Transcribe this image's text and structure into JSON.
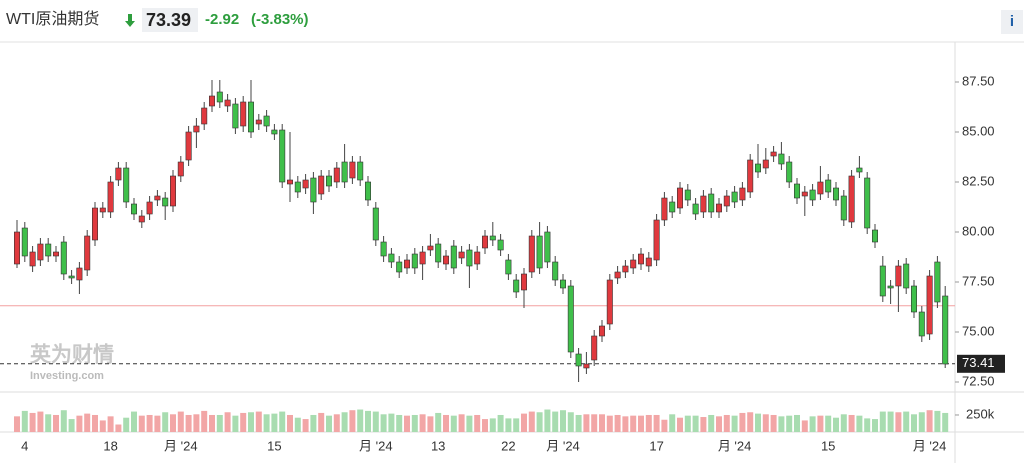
{
  "header": {
    "title": "WTI原油期货",
    "price": "73.39",
    "change": "-2.92",
    "change_pct": "(-3.83%)",
    "info": "i"
  },
  "watermark": {
    "brand": "英为财情",
    "site": "Investing.com"
  },
  "chart_data": {
    "type": "candlestick",
    "categories": [
      null,
      "4",
      null,
      null,
      null,
      null,
      null,
      null,
      null,
      null,
      null,
      null,
      "18",
      null,
      null,
      null,
      null,
      null,
      null,
      null,
      null,
      "月 '24",
      null,
      null,
      null,
      null,
      null,
      null,
      null,
      null,
      null,
      null,
      null,
      "15",
      null,
      null,
      null,
      null,
      null,
      null,
      null,
      null,
      null,
      null,
      null,
      null,
      "月 '24",
      null,
      null,
      null,
      null,
      null,
      null,
      null,
      "13",
      null,
      null,
      null,
      null,
      null,
      null,
      null,
      null,
      "22",
      null,
      null,
      null,
      null,
      null,
      null,
      "月 '24",
      null,
      null,
      null,
      null,
      null,
      null,
      null,
      null,
      null,
      null,
      null,
      "17",
      null,
      null,
      null,
      null,
      null,
      null,
      null,
      null,
      null,
      "月 '24",
      null,
      null,
      null,
      null,
      null,
      null,
      null,
      null,
      null,
      null,
      null,
      "15",
      null,
      null,
      null,
      null,
      null,
      null,
      null,
      null,
      null,
      null,
      null,
      null,
      "月 '24",
      null,
      null
    ],
    "open": [
      78.4,
      80.2,
      78.3,
      78.6,
      79.4,
      78.8,
      79.5,
      77.8,
      77.6,
      78.1,
      79.6,
      81.0,
      81.0,
      82.6,
      83.2,
      81.4,
      80.5,
      80.9,
      81.6,
      81.7,
      81.3,
      82.8,
      83.6,
      85.0,
      85.4,
      86.3,
      87.0,
      86.3,
      86.4,
      85.3,
      86.5,
      85.4,
      85.8,
      85.1,
      85.1,
      82.4,
      82.5,
      82.2,
      82.7,
      81.9,
      82.8,
      82.5,
      83.5,
      82.7,
      83.5,
      82.5,
      81.2,
      79.5,
      78.9,
      78.5,
      78.2,
      78.9,
      78.4,
      79.1,
      79.4,
      78.4,
      79.3,
      78.7,
      79.1,
      78.4,
      79.2,
      79.8,
      79.6,
      78.6,
      77.6,
      77.1,
      78.0,
      79.8,
      80.0,
      78.5,
      77.6,
      77.3,
      73.9,
      73.2,
      73.6,
      74.8,
      75.4,
      77.7,
      78.0,
      78.2,
      78.4,
      78.3,
      78.6,
      80.6,
      81.5,
      81.2,
      82.1,
      81.4,
      81.0,
      81.9,
      81.0,
      81.3,
      82.0,
      81.6,
      82.0,
      83.4,
      83.2,
      83.8,
      83.9,
      83.5,
      82.4,
      81.8,
      82.1,
      81.9,
      82.6,
      82.2,
      81.8,
      80.5,
      83.2,
      82.7,
      80.1,
      78.3,
      77.3,
      77.3,
      78.4,
      77.3,
      76.0,
      74.9,
      78.5,
      76.8
    ],
    "high": [
      80.6,
      80.5,
      79.3,
      79.7,
      79.7,
      79.3,
      79.8,
      78.1,
      78.5,
      80.1,
      81.5,
      81.5,
      82.8,
      83.5,
      83.5,
      81.7,
      81.1,
      81.8,
      82.1,
      82.0,
      83.1,
      83.8,
      85.3,
      85.7,
      86.5,
      87.6,
      87.6,
      86.9,
      86.7,
      86.8,
      87.6,
      85.9,
      86.1,
      85.4,
      85.4,
      85.0,
      82.8,
      82.9,
      83.0,
      83.1,
      83.1,
      83.5,
      84.4,
      83.8,
      83.8,
      82.8,
      81.5,
      79.8,
      79.2,
      78.8,
      78.9,
      79.2,
      79.3,
      79.9,
      79.7,
      79.1,
      79.6,
      79.3,
      79.4,
      79.3,
      80.1,
      80.5,
      79.9,
      78.9,
      77.9,
      78.2,
      80.1,
      80.5,
      80.3,
      78.8,
      77.9,
      77.6,
      74.2,
      74.0,
      75.1,
      75.6,
      77.9,
      78.3,
      78.6,
      78.9,
      79.2,
      79.0,
      80.9,
      82.0,
      81.8,
      82.5,
      82.4,
      81.7,
      82.1,
      82.2,
      81.7,
      82.1,
      82.3,
      82.5,
      83.9,
      84.4,
      84.2,
      84.3,
      84.5,
      83.8,
      82.7,
      82.3,
      82.4,
      83.3,
      82.9,
      82.5,
      82.1,
      83.1,
      83.8,
      83.0,
      80.4,
      78.8,
      77.6,
      78.6,
      78.7,
      77.6,
      76.3,
      78.1,
      78.8,
      77.3
    ],
    "low": [
      78.2,
      78.5,
      78.0,
      78.3,
      78.5,
      78.5,
      77.6,
      77.4,
      76.9,
      77.8,
      79.3,
      80.7,
      80.7,
      82.3,
      81.2,
      80.6,
      80.2,
      80.6,
      81.3,
      80.6,
      81.0,
      82.5,
      83.3,
      84.2,
      85.1,
      86.0,
      86.2,
      86.0,
      84.9,
      85.0,
      84.7,
      85.1,
      85.0,
      84.6,
      82.2,
      81.5,
      81.7,
      81.9,
      80.9,
      81.6,
      82.0,
      82.2,
      82.2,
      82.4,
      82.3,
      81.3,
      79.3,
      78.5,
      78.2,
      77.7,
      77.9,
      77.9,
      77.6,
      78.8,
      78.2,
      78.1,
      77.9,
      78.4,
      77.2,
      78.1,
      78.9,
      79.3,
      78.8,
      77.6,
      76.7,
      76.2,
      77.7,
      77.9,
      78.2,
      77.3,
      76.9,
      73.7,
      72.5,
      72.9,
      73.3,
      74.5,
      75.1,
      77.4,
      77.7,
      77.9,
      78.1,
      78.0,
      78.3,
      80.3,
      80.7,
      80.9,
      81.3,
      80.6,
      80.7,
      80.7,
      80.7,
      81.0,
      81.2,
      81.3,
      81.7,
      82.7,
      82.9,
      83.5,
      83.1,
      82.2,
      81.4,
      80.8,
      81.3,
      81.6,
      81.7,
      81.3,
      80.3,
      80.2,
      82.7,
      79.9,
      79.2,
      76.5,
      76.4,
      76.0,
      76.9,
      75.7,
      74.5,
      74.6,
      76.2,
      73.2
    ],
    "close": [
      80.0,
      78.8,
      79.0,
      79.4,
      78.8,
      79.0,
      77.9,
      77.7,
      78.2,
      79.8,
      81.2,
      81.2,
      82.5,
      83.2,
      81.5,
      80.9,
      80.8,
      81.5,
      81.8,
      81.3,
      82.8,
      83.5,
      85.0,
      85.3,
      86.2,
      86.8,
      86.5,
      86.6,
      85.2,
      86.5,
      85.0,
      85.6,
      85.3,
      84.9,
      82.5,
      82.6,
      82.0,
      82.6,
      81.5,
      82.8,
      82.3,
      83.2,
      82.5,
      83.5,
      82.6,
      81.6,
      79.6,
      78.8,
      78.5,
      78.0,
      78.6,
      78.2,
      79.0,
      79.3,
      78.5,
      78.8,
      78.2,
      79.0,
      78.3,
      79.0,
      79.8,
      79.6,
      79.1,
      77.9,
      77.0,
      77.9,
      79.8,
      78.2,
      78.5,
      77.6,
      77.2,
      74.0,
      73.3,
      73.4,
      74.8,
      75.3,
      77.6,
      78.0,
      78.3,
      78.6,
      78.9,
      78.7,
      80.6,
      81.7,
      81.0,
      82.2,
      81.6,
      80.9,
      81.8,
      81.0,
      81.4,
      81.8,
      81.5,
      82.2,
      83.6,
      83.0,
      83.6,
      84.0,
      83.4,
      82.5,
      81.7,
      82.0,
      81.6,
      82.5,
      82.0,
      81.6,
      80.6,
      82.8,
      83.0,
      80.2,
      79.5,
      76.8,
      77.2,
      78.3,
      77.2,
      76.0,
      74.8,
      77.8,
      76.5,
      73.4
    ],
    "volume": [
      230000,
      310000,
      280000,
      300000,
      260000,
      250000,
      320000,
      190000,
      240000,
      270000,
      250000,
      170000,
      230000,
      110000,
      210000,
      300000,
      240000,
      250000,
      240000,
      290000,
      260000,
      300000,
      250000,
      260000,
      310000,
      250000,
      250000,
      290000,
      240000,
      280000,
      290000,
      300000,
      260000,
      270000,
      300000,
      250000,
      210000,
      190000,
      250000,
      280000,
      240000,
      260000,
      290000,
      320000,
      330000,
      310000,
      300000,
      260000,
      270000,
      250000,
      240000,
      250000,
      260000,
      230000,
      280000,
      250000,
      240000,
      260000,
      240000,
      250000,
      190000,
      200000,
      250000,
      200000,
      200000,
      270000,
      300000,
      290000,
      330000,
      300000,
      320000,
      290000,
      250000,
      260000,
      260000,
      260000,
      240000,
      250000,
      230000,
      240000,
      240000,
      250000,
      250000,
      180000,
      260000,
      210000,
      240000,
      240000,
      220000,
      250000,
      230000,
      250000,
      240000,
      280000,
      290000,
      270000,
      260000,
      250000,
      230000,
      240000,
      250000,
      170000,
      230000,
      240000,
      240000,
      210000,
      260000,
      250000,
      240000,
      200000,
      190000,
      300000,
      300000,
      290000,
      300000,
      260000,
      290000,
      320000,
      310000,
      280000
    ],
    "ylim": [
      72.0,
      89.5
    ],
    "yticks": [
      {
        "value": 72.5,
        "label": "72.50"
      },
      {
        "value": 75,
        "label": "75.00"
      },
      {
        "value": 77.5,
        "label": "77.50"
      },
      {
        "value": 80,
        "label": "80.00"
      },
      {
        "value": 82.5,
        "label": "82.50"
      },
      {
        "value": 85,
        "label": "85.00"
      },
      {
        "value": 87.5,
        "label": "87.50"
      }
    ],
    "vlim": [
      0,
      470000
    ],
    "vticks": [
      {
        "value": 250000,
        "label": "250k"
      }
    ],
    "last_price": 73.41,
    "prev_close": 76.31,
    "up_color": "#e0393e",
    "down_color": "#3fbf4a",
    "volume_up_color": "#f2a6a6",
    "volume_down_color": "#a8dcb0"
  }
}
